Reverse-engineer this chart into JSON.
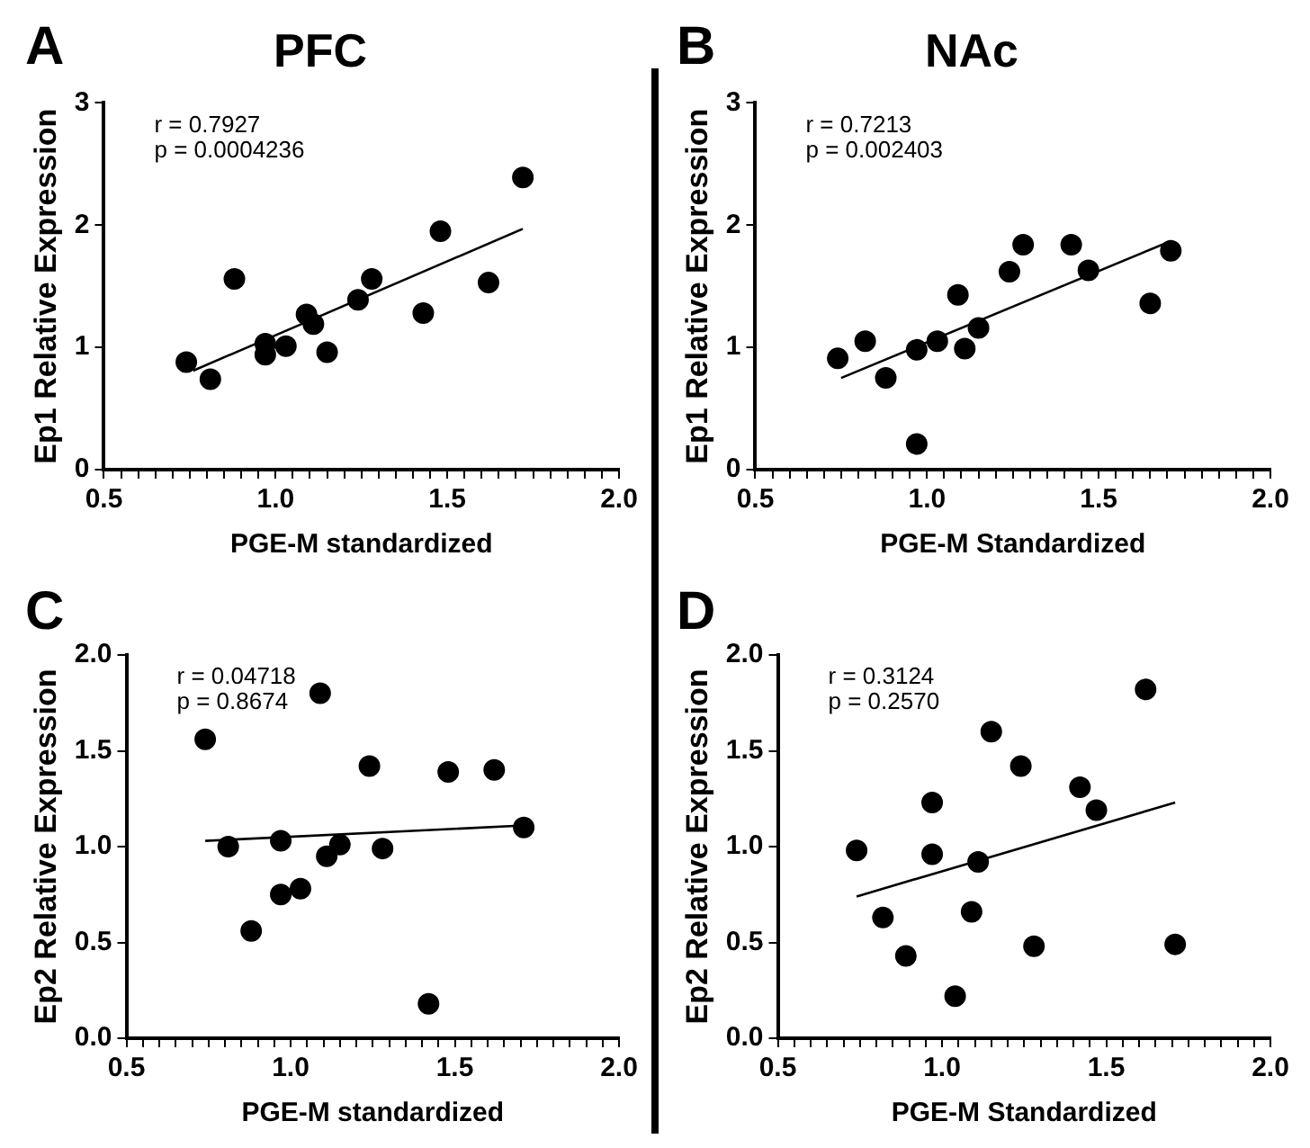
{
  "chart_data": [
    {
      "type": "scatter",
      "title": "PFC",
      "annotations": [
        "A",
        "r = 0.7927",
        "p = 0.0004236"
      ],
      "xlabel": "PGE-M standardized",
      "ylabel": "Ep1 Relative Expression",
      "legend": false,
      "grid": false,
      "xlim": [
        0.5,
        2.0
      ],
      "ylim": [
        0,
        3
      ],
      "xticks": [
        {
          "value": 0.5,
          "label": "0.5"
        },
        {
          "value": 0.55,
          "label": null
        },
        {
          "value": 0.6,
          "label": null
        },
        {
          "value": 0.65,
          "label": null
        },
        {
          "value": 0.7,
          "label": null
        },
        {
          "value": 0.75,
          "label": null
        },
        {
          "value": 0.8,
          "label": null
        },
        {
          "value": 0.85,
          "label": null
        },
        {
          "value": 0.9,
          "label": null
        },
        {
          "value": 0.95,
          "label": null
        },
        {
          "value": 1.0,
          "label": "1.0"
        },
        {
          "value": 1.05,
          "label": null
        },
        {
          "value": 1.1,
          "label": null
        },
        {
          "value": 1.15,
          "label": null
        },
        {
          "value": 1.2,
          "label": null
        },
        {
          "value": 1.25,
          "label": null
        },
        {
          "value": 1.3,
          "label": null
        },
        {
          "value": 1.35,
          "label": null
        },
        {
          "value": 1.4,
          "label": null
        },
        {
          "value": 1.45,
          "label": null
        },
        {
          "value": 1.5,
          "label": "1.5"
        },
        {
          "value": 1.55,
          "label": null
        },
        {
          "value": 1.6,
          "label": null
        },
        {
          "value": 1.65,
          "label": null
        },
        {
          "value": 1.7,
          "label": null
        },
        {
          "value": 1.75,
          "label": null
        },
        {
          "value": 1.8,
          "label": null
        },
        {
          "value": 1.85,
          "label": null
        },
        {
          "value": 1.9,
          "label": null
        },
        {
          "value": 1.95,
          "label": null
        },
        {
          "value": 2.0,
          "label": "2.0"
        }
      ],
      "yticks": [
        0,
        1,
        2,
        3
      ],
      "series": [
        {
          "color": "#000000",
          "marker": "circle",
          "x": [
            0.74,
            0.81,
            0.88,
            0.97,
            0.97,
            1.03,
            1.09,
            1.11,
            1.15,
            1.24,
            1.28,
            1.43,
            1.48,
            1.62,
            1.72
          ],
          "values": [
            0.88,
            0.74,
            1.56,
            1.03,
            0.94,
            1.01,
            1.27,
            1.19,
            0.96,
            1.39,
            1.56,
            1.28,
            1.95,
            1.53,
            2.39
          ]
        },
        {
          "type": "line",
          "color": "#000000",
          "marker": "none",
          "line_style": "solid",
          "x": [
            0.76,
            1.72
          ],
          "values": [
            0.81,
            1.97
          ]
        }
      ]
    },
    {
      "type": "scatter",
      "title": "NAc",
      "annotations": [
        "B",
        "r = 0.7213",
        "p = 0.002403"
      ],
      "xlabel": "PGE-M Standardized",
      "ylabel": "Ep1 Relative Expression",
      "legend": false,
      "grid": false,
      "xlim": [
        0.5,
        2.0
      ],
      "ylim": [
        0,
        3
      ],
      "xticks": [
        {
          "value": 0.5,
          "label": "0.5"
        },
        {
          "value": 0.55,
          "label": null
        },
        {
          "value": 0.6,
          "label": null
        },
        {
          "value": 0.65,
          "label": null
        },
        {
          "value": 0.7,
          "label": null
        },
        {
          "value": 0.75,
          "label": null
        },
        {
          "value": 0.8,
          "label": null
        },
        {
          "value": 0.85,
          "label": null
        },
        {
          "value": 0.9,
          "label": null
        },
        {
          "value": 0.95,
          "label": null
        },
        {
          "value": 1.0,
          "label": "1.0"
        },
        {
          "value": 1.05,
          "label": null
        },
        {
          "value": 1.1,
          "label": null
        },
        {
          "value": 1.15,
          "label": null
        },
        {
          "value": 1.2,
          "label": null
        },
        {
          "value": 1.25,
          "label": null
        },
        {
          "value": 1.3,
          "label": null
        },
        {
          "value": 1.35,
          "label": null
        },
        {
          "value": 1.4,
          "label": null
        },
        {
          "value": 1.45,
          "label": null
        },
        {
          "value": 1.5,
          "label": "1.5"
        },
        {
          "value": 1.55,
          "label": null
        },
        {
          "value": 1.6,
          "label": null
        },
        {
          "value": 1.65,
          "label": null
        },
        {
          "value": 1.7,
          "label": null
        },
        {
          "value": 1.75,
          "label": null
        },
        {
          "value": 1.8,
          "label": null
        },
        {
          "value": 1.85,
          "label": null
        },
        {
          "value": 1.9,
          "label": null
        },
        {
          "value": 1.95,
          "label": null
        },
        {
          "value": 2.0,
          "label": "2.0"
        }
      ],
      "yticks": [
        0,
        1,
        2,
        3
      ],
      "series": [
        {
          "color": "#000000",
          "marker": "circle",
          "x": [
            0.74,
            0.82,
            0.88,
            0.97,
            0.97,
            1.03,
            1.09,
            1.11,
            1.15,
            1.24,
            1.28,
            1.42,
            1.47,
            1.65,
            1.71
          ],
          "values": [
            0.91,
            1.05,
            0.75,
            0.98,
            0.21,
            1.05,
            1.43,
            0.99,
            1.16,
            1.62,
            1.84,
            1.84,
            1.63,
            1.36,
            1.79
          ]
        },
        {
          "type": "line",
          "color": "#000000",
          "marker": "none",
          "line_style": "solid",
          "x": [
            0.75,
            1.71
          ],
          "values": [
            0.75,
            1.87
          ]
        }
      ]
    },
    {
      "type": "scatter",
      "annotations": [
        "C",
        "r = 0.04718",
        "p = 0.8674"
      ],
      "xlabel": "PGE-M standardized",
      "ylabel": "Ep2 Relative Expression",
      "legend": false,
      "grid": false,
      "xlim": [
        0.5,
        2.0
      ],
      "ylim": [
        0,
        2.0
      ],
      "xticks": [
        {
          "value": 0.5,
          "label": "0.5"
        },
        {
          "value": 0.55,
          "label": null
        },
        {
          "value": 0.6,
          "label": null
        },
        {
          "value": 0.65,
          "label": null
        },
        {
          "value": 0.7,
          "label": null
        },
        {
          "value": 0.75,
          "label": null
        },
        {
          "value": 0.8,
          "label": null
        },
        {
          "value": 0.85,
          "label": null
        },
        {
          "value": 0.9,
          "label": null
        },
        {
          "value": 0.95,
          "label": null
        },
        {
          "value": 1.0,
          "label": "1.0"
        },
        {
          "value": 1.05,
          "label": null
        },
        {
          "value": 1.1,
          "label": null
        },
        {
          "value": 1.15,
          "label": null
        },
        {
          "value": 1.2,
          "label": null
        },
        {
          "value": 1.25,
          "label": null
        },
        {
          "value": 1.3,
          "label": null
        },
        {
          "value": 1.35,
          "label": null
        },
        {
          "value": 1.4,
          "label": null
        },
        {
          "value": 1.45,
          "label": null
        },
        {
          "value": 1.5,
          "label": "1.5"
        },
        {
          "value": 1.55,
          "label": null
        },
        {
          "value": 1.6,
          "label": null
        },
        {
          "value": 1.65,
          "label": null
        },
        {
          "value": 1.7,
          "label": null
        },
        {
          "value": 1.75,
          "label": null
        },
        {
          "value": 1.8,
          "label": null
        },
        {
          "value": 1.85,
          "label": null
        },
        {
          "value": 1.9,
          "label": null
        },
        {
          "value": 1.95,
          "label": null
        },
        {
          "value": 2.0,
          "label": "2.0"
        }
      ],
      "yticks": [
        {
          "value": 0,
          "label": "0.0"
        },
        {
          "value": 0.5,
          "label": "0.5"
        },
        {
          "value": 1,
          "label": "1.0"
        },
        {
          "value": 1.5,
          "label": "1.5"
        },
        {
          "value": 2,
          "label": "2.0"
        }
      ],
      "series": [
        {
          "color": "#000000",
          "marker": "circle",
          "x": [
            0.74,
            0.81,
            0.88,
            0.97,
            0.97,
            1.03,
            1.09,
            1.11,
            1.15,
            1.24,
            1.28,
            1.42,
            1.48,
            1.62,
            1.71
          ],
          "values": [
            1.56,
            1.0,
            0.56,
            1.03,
            0.75,
            0.78,
            1.8,
            0.95,
            1.01,
            1.42,
            0.99,
            0.18,
            1.39,
            1.4,
            1.1
          ]
        },
        {
          "type": "line",
          "color": "#000000",
          "marker": "none",
          "line_style": "solid",
          "x": [
            0.74,
            1.71
          ],
          "values": [
            1.03,
            1.11
          ]
        }
      ]
    },
    {
      "type": "scatter",
      "annotations": [
        "D",
        "r = 0.3124",
        "p = 0.2570"
      ],
      "xlabel": "PGE-M Standardized",
      "ylabel": "Ep2 Relative Expression",
      "legend": false,
      "grid": false,
      "xlim": [
        0.5,
        2.0
      ],
      "ylim": [
        0,
        2.0
      ],
      "xticks": [
        {
          "value": 0.5,
          "label": "0.5"
        },
        {
          "value": 0.55,
          "label": null
        },
        {
          "value": 0.6,
          "label": null
        },
        {
          "value": 0.65,
          "label": null
        },
        {
          "value": 0.7,
          "label": null
        },
        {
          "value": 0.75,
          "label": null
        },
        {
          "value": 0.8,
          "label": null
        },
        {
          "value": 0.85,
          "label": null
        },
        {
          "value": 0.9,
          "label": null
        },
        {
          "value": 0.95,
          "label": null
        },
        {
          "value": 1.0,
          "label": "1.0"
        },
        {
          "value": 1.05,
          "label": null
        },
        {
          "value": 1.1,
          "label": null
        },
        {
          "value": 1.15,
          "label": null
        },
        {
          "value": 1.2,
          "label": null
        },
        {
          "value": 1.25,
          "label": null
        },
        {
          "value": 1.3,
          "label": null
        },
        {
          "value": 1.35,
          "label": null
        },
        {
          "value": 1.4,
          "label": null
        },
        {
          "value": 1.45,
          "label": null
        },
        {
          "value": 1.5,
          "label": "1.5"
        },
        {
          "value": 1.55,
          "label": null
        },
        {
          "value": 1.6,
          "label": null
        },
        {
          "value": 1.65,
          "label": null
        },
        {
          "value": 1.7,
          "label": null
        },
        {
          "value": 1.75,
          "label": null
        },
        {
          "value": 1.8,
          "label": null
        },
        {
          "value": 1.85,
          "label": null
        },
        {
          "value": 1.9,
          "label": null
        },
        {
          "value": 1.95,
          "label": null
        },
        {
          "value": 2.0,
          "label": "2.0"
        }
      ],
      "yticks": [
        {
          "value": 0,
          "label": "0.0"
        },
        {
          "value": 0.5,
          "label": "0.5"
        },
        {
          "value": 1,
          "label": "1.0"
        },
        {
          "value": 1.5,
          "label": "1.5"
        },
        {
          "value": 2,
          "label": "2.0"
        }
      ],
      "series": [
        {
          "color": "#000000",
          "marker": "circle",
          "x": [
            0.74,
            0.82,
            0.89,
            0.97,
            0.97,
            1.04,
            1.09,
            1.11,
            1.15,
            1.24,
            1.28,
            1.42,
            1.47,
            1.62,
            1.71
          ],
          "values": [
            0.98,
            0.63,
            0.43,
            1.23,
            0.96,
            0.22,
            0.66,
            0.92,
            1.6,
            1.42,
            0.48,
            1.31,
            1.19,
            1.82,
            0.49
          ]
        },
        {
          "type": "line",
          "color": "#000000",
          "marker": "none",
          "line_style": "solid",
          "x": [
            0.74,
            1.71
          ],
          "values": [
            0.74,
            1.23
          ]
        }
      ]
    }
  ]
}
